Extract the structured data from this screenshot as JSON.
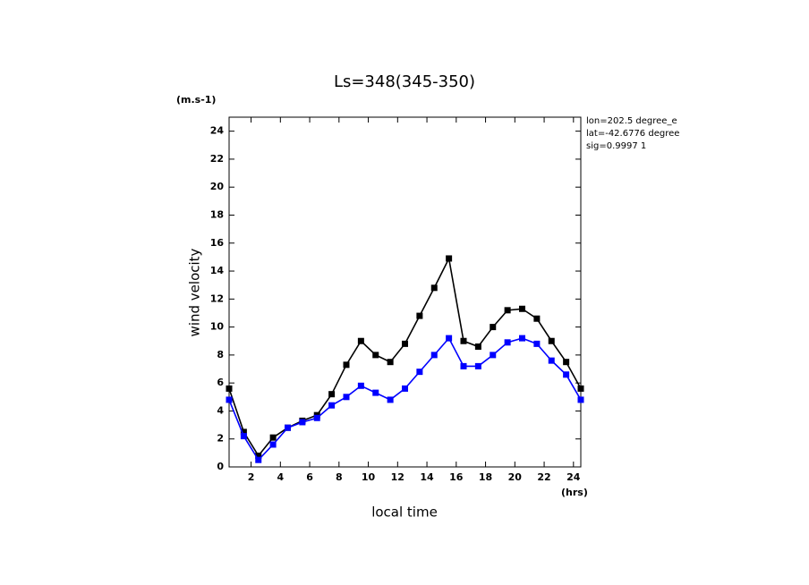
{
  "chart_data": {
    "type": "line",
    "title": "Ls=348(345-350)",
    "y_unit": "(m.s-1)",
    "x_unit": "(hrs)",
    "y_label": "wind velocity",
    "x_label": "local time",
    "annotations": [
      "lon=202.5 degree_e",
      "lat=-42.6776 degree",
      "sig=0.9997 1"
    ],
    "x": [
      0.5,
      1.5,
      2.5,
      3.5,
      4.5,
      5.5,
      6.5,
      7.5,
      8.5,
      9.5,
      10.5,
      11.5,
      12.5,
      13.5,
      14.5,
      15.5,
      16.5,
      17.5,
      18.5,
      19.5,
      20.5,
      21.5,
      22.5,
      23.5,
      24.5
    ],
    "series": [
      {
        "color": "#000000",
        "values": [
          5.6,
          2.5,
          0.8,
          2.1,
          2.8,
          3.3,
          3.7,
          5.2,
          7.3,
          9.0,
          8.0,
          7.5,
          8.8,
          10.8,
          12.8,
          14.9,
          9.0,
          8.6,
          10.0,
          11.2,
          11.3,
          10.6,
          9.0,
          7.5,
          5.6
        ]
      },
      {
        "color": "#0000ff",
        "values": [
          4.8,
          2.2,
          0.5,
          1.6,
          2.8,
          3.2,
          3.5,
          4.4,
          5.0,
          5.8,
          5.3,
          4.8,
          5.6,
          6.8,
          8.0,
          9.2,
          7.2,
          7.2,
          8.0,
          8.9,
          9.2,
          8.8,
          7.6,
          6.6,
          4.8
        ]
      }
    ],
    "xlim": [
      0.5,
      24.5
    ],
    "xticks": [
      2,
      4,
      6,
      8,
      10,
      12,
      14,
      16,
      18,
      20,
      22,
      24
    ],
    "ylim": [
      0,
      25
    ],
    "yticks": [
      0,
      2,
      4,
      6,
      8,
      10,
      12,
      14,
      16,
      18,
      20,
      22,
      24
    ]
  }
}
